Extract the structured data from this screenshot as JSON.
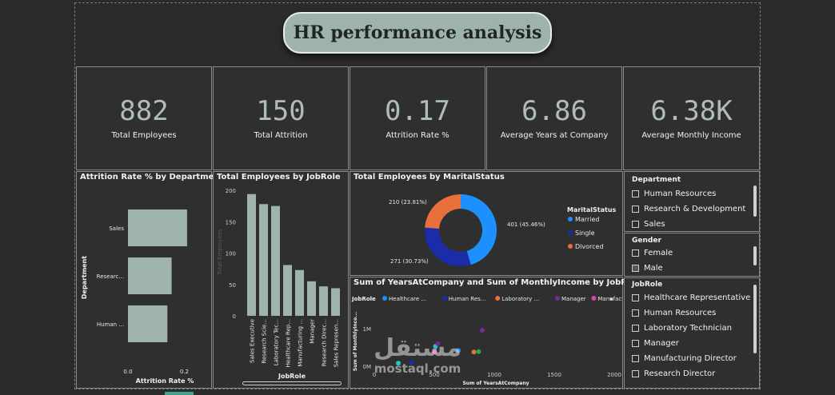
{
  "header": {
    "title": "HR performance analysis"
  },
  "kpis": [
    {
      "value": "882",
      "label": "Total Employees"
    },
    {
      "value": "150",
      "label": "Total Attrition"
    },
    {
      "value": "0.17",
      "label": "Attrition Rate %"
    },
    {
      "value": "6.86",
      "label": "Average Years at Company"
    },
    {
      "value": "6.38K",
      "label": "Average Monthly Income"
    }
  ],
  "dept_chart": {
    "title": "Attrition Rate % by Department",
    "chart_data": {
      "type": "bar",
      "orientation": "horizontal",
      "categories": [
        "Sales",
        "Researc...",
        "Human ..."
      ],
      "values": [
        0.21,
        0.155,
        0.14
      ],
      "xlabel": "Attrition Rate %",
      "ylabel": "Department",
      "xlim": [
        0,
        0.25
      ],
      "ticks": [
        "0.0",
        "0.2"
      ],
      "color": "#9fb3ae"
    }
  },
  "jobrole_chart": {
    "title": "Total Employees by JobRole",
    "chart_data": {
      "type": "bar",
      "categories": [
        "Sales Executive",
        "Research Scie...",
        "Laboratory Tec...",
        "Healthcare Rep...",
        "Manufacturing ...",
        "Manager",
        "Research Direc...",
        "Sales Represen..."
      ],
      "values": [
        194,
        178,
        175,
        81,
        73,
        55,
        47,
        44
      ],
      "xlabel": "JobRole",
      "ylabel": "Total Employees",
      "ylim": [
        0,
        200
      ],
      "ticks": [
        "0",
        "50",
        "100",
        "150",
        "200"
      ],
      "color": "#9fb3ae"
    }
  },
  "marital_chart": {
    "title": "Total Employees by MaritalStatus",
    "chart_data": {
      "type": "pie",
      "categories": [
        "Married",
        "Single",
        "Divorced"
      ],
      "values": [
        401,
        271,
        210
      ],
      "labels": [
        "401 (45.46%)",
        "271 (30.73%)",
        "210 (23.81%)"
      ],
      "colors": [
        "#1e8fff",
        "#1a2ca8",
        "#e8703a"
      ]
    },
    "legend_title": "MaritalStatus"
  },
  "scatter_chart": {
    "title": "Sum of YearsAtCompany and Sum of MonthlyIncome by JobRole",
    "legend_title": "JobRole",
    "legend_items": [
      "Healthcare ...",
      "Human Res...",
      "Laboratory ...",
      "Manager",
      "Manufacturi..."
    ],
    "legend_colors": [
      "#1e8fff",
      "#1a2ca8",
      "#e8703a",
      "#7a2a8a",
      "#e040b0"
    ],
    "chart_data": {
      "type": "scatter",
      "xlabel": "Sum of YearsAtCompany",
      "ylabel": "Sum of MonthlyInco...",
      "xlim": [
        0,
        2000
      ],
      "ylim": [
        0,
        1600000
      ],
      "xticks": [
        "0",
        "500",
        "1000",
        "1500",
        "2000"
      ],
      "yticks": [
        "0M",
        "1M"
      ],
      "points": [
        {
          "x": 200,
          "y": 80000,
          "color": "#1ec8c8"
        },
        {
          "x": 310,
          "y": 100000,
          "color": "#1a2ca8"
        },
        {
          "x": 500,
          "y": 380000,
          "color": "#e040b0"
        },
        {
          "x": 510,
          "y": 530000,
          "color": "#1ec8c8"
        },
        {
          "x": 530,
          "y": 600000,
          "color": "#7a2a8a"
        },
        {
          "x": 700,
          "y": 420000,
          "color": "#1e8fff"
        },
        {
          "x": 830,
          "y": 380000,
          "color": "#e8703a"
        },
        {
          "x": 870,
          "y": 390000,
          "color": "#2aa84a"
        },
        {
          "x": 900,
          "y": 960000,
          "color": "#7a2a8a"
        }
      ]
    }
  },
  "slicers": {
    "department": {
      "title": "Department",
      "items": [
        "Human Resources",
        "Research & Development",
        "Sales"
      ]
    },
    "gender": {
      "title": "Gender",
      "items": [
        "Female",
        "Male"
      ]
    },
    "jobrole": {
      "title": "JobRole",
      "items": [
        "Healthcare Representative",
        "Human Resources",
        "Laboratory Technician",
        "Manager",
        "Manufacturing Director",
        "Research Director"
      ]
    }
  },
  "watermark": {
    "arabic": "مستقل",
    "latin": "mostaql.com"
  }
}
